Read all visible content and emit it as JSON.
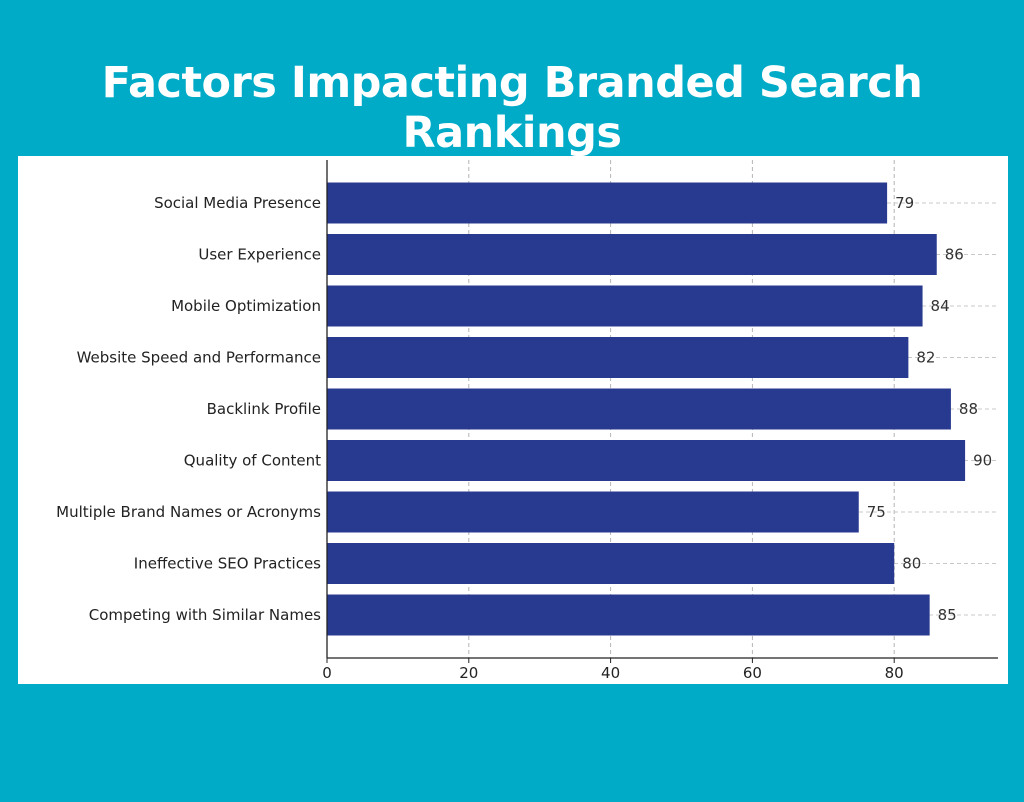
{
  "title": "Factors Impacting Branded Search Rankings",
  "colors": {
    "background": "#00abc8",
    "bar": "#283a8f",
    "panel": "#ffffff"
  },
  "chart_data": {
    "type": "bar",
    "orientation": "horizontal",
    "categories": [
      "Social Media Presence",
      "User Experience",
      "Mobile Optimization",
      "Website Speed and Performance",
      "Backlink Profile",
      "Quality of Content",
      "Multiple Brand Names or Acronyms",
      "Ineffective SEO Practices",
      "Competing with Similar Names"
    ],
    "values": [
      79,
      86,
      84,
      82,
      88,
      90,
      75,
      80,
      85
    ],
    "xticks": [
      0,
      20,
      40,
      60,
      80
    ],
    "xlim": [
      0,
      95
    ],
    "grid": true,
    "data_labels": true
  }
}
